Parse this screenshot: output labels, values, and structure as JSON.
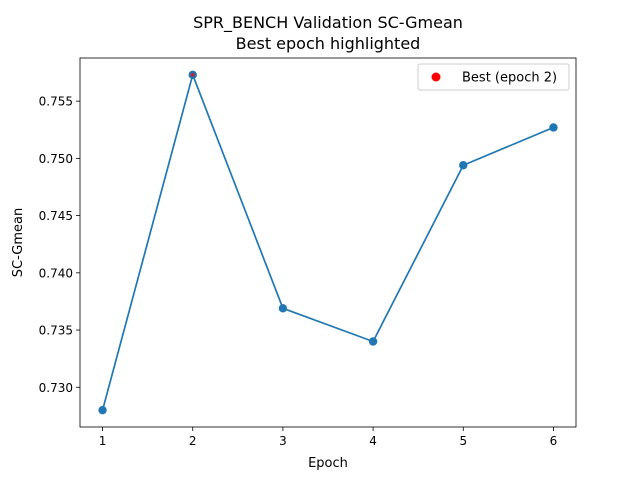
{
  "chart_data": {
    "type": "line",
    "title": "SPR_BENCH Validation SC-Gmean",
    "subtitle": "Best epoch highlighted",
    "xlabel": "Epoch",
    "ylabel": "SC-Gmean",
    "x": [
      1,
      2,
      3,
      4,
      5,
      6
    ],
    "series": [
      {
        "values": [
          0.728,
          0.7573,
          0.7369,
          0.734,
          0.7494,
          0.7527
        ],
        "color": "#1f77b4"
      }
    ],
    "best_point": {
      "label": "Best (epoch 2)",
      "x": 2,
      "y": 0.7573,
      "color": "#ff0000"
    },
    "x_ticks": [
      "1",
      "2",
      "3",
      "4",
      "5",
      "6"
    ],
    "y_ticks": [
      "0.730",
      "0.735",
      "0.740",
      "0.745",
      "0.750",
      "0.755"
    ],
    "xlim": [
      0.75,
      6.25
    ],
    "ylim": [
      0.72653,
      0.75877
    ],
    "grid": false,
    "legend_position": "top-right"
  }
}
